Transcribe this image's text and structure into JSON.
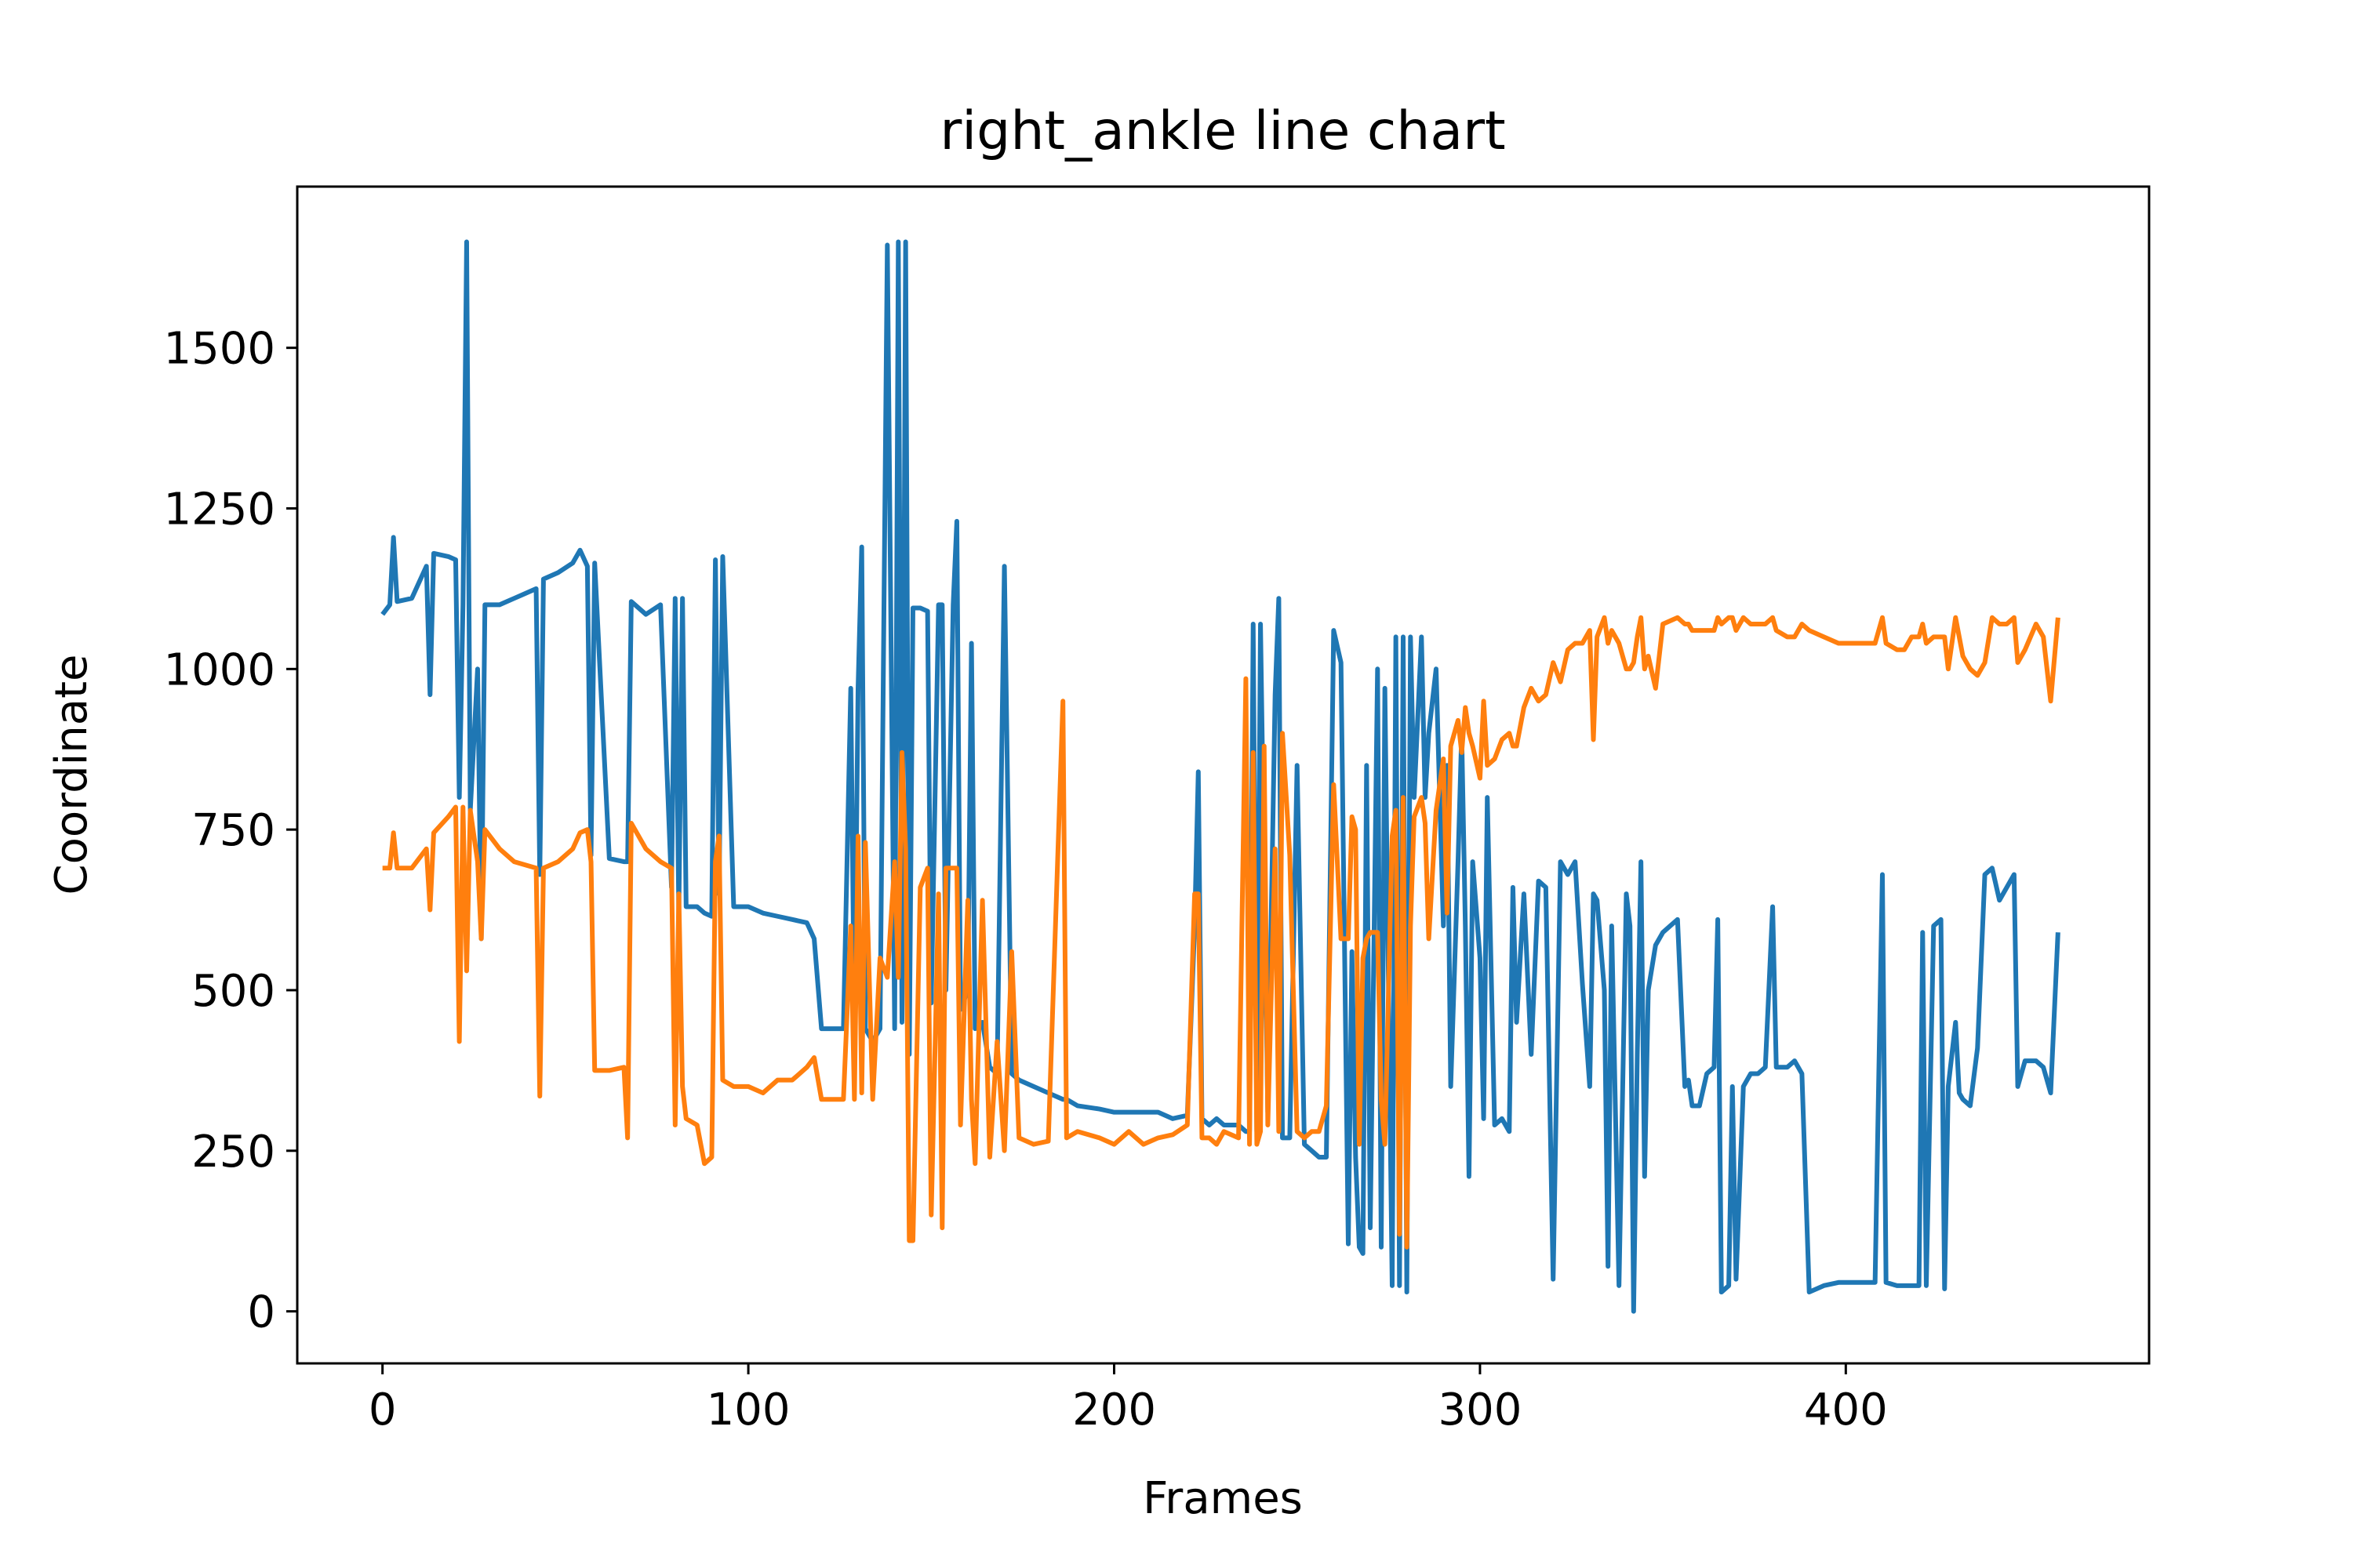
{
  "chart_data": {
    "type": "line",
    "title": "right_ankle line chart",
    "xlabel": "Frames",
    "ylabel": "Coordinate",
    "xlim": [
      -23.3,
      482.9
    ],
    "ylim": [
      -81,
      1751
    ],
    "xticks": [
      0,
      100,
      200,
      300,
      400
    ],
    "yticks": [
      0,
      250,
      500,
      750,
      1000,
      1250,
      1500
    ],
    "x": [
      0,
      2,
      3,
      4,
      8,
      12,
      13,
      14,
      18,
      20,
      21,
      22,
      23,
      24,
      26,
      27,
      28,
      32,
      36,
      42,
      43,
      44,
      48,
      52,
      54,
      56,
      57,
      58,
      62,
      66,
      67,
      68,
      72,
      76,
      79,
      80,
      81,
      82,
      83,
      86,
      88,
      90,
      91,
      92,
      93,
      96,
      100,
      104,
      108,
      112,
      116,
      118,
      120,
      124,
      126,
      128,
      129,
      130,
      131,
      132,
      134,
      136,
      138,
      140,
      141,
      142,
      143,
      144,
      145,
      147,
      149,
      150,
      152,
      153,
      154,
      156,
      157,
      158,
      160,
      161,
      162,
      164,
      166,
      168,
      170,
      172,
      174,
      178,
      182,
      186,
      187,
      190,
      196,
      200,
      204,
      208,
      212,
      216,
      220,
      222,
      223,
      224,
      226,
      228,
      230,
      234,
      236,
      237,
      238,
      239,
      240,
      241,
      242,
      244,
      245,
      246,
      248,
      250,
      252,
      254,
      256,
      258,
      260,
      262,
      264,
      265,
      266,
      267,
      268,
      269,
      270,
      272,
      273,
      274,
      276,
      277,
      278,
      279,
      280,
      281,
      282,
      284,
      285,
      286,
      288,
      290,
      291,
      292,
      294,
      295,
      296,
      297,
      298,
      300,
      301,
      302,
      304,
      306,
      308,
      309,
      310,
      312,
      314,
      316,
      318,
      320,
      322,
      324,
      326,
      328,
      330,
      331,
      332,
      334,
      335,
      336,
      338,
      340,
      341,
      342,
      343,
      344,
      345,
      346,
      348,
      350,
      352,
      354,
      356,
      357,
      358,
      360,
      362,
      364,
      365,
      366,
      368,
      369,
      370,
      372,
      374,
      376,
      378,
      380,
      381,
      384,
      386,
      388,
      390,
      394,
      398,
      402,
      406,
      408,
      410,
      411,
      414,
      416,
      418,
      420,
      421,
      422,
      424,
      426,
      427,
      428,
      430,
      431,
      432,
      434,
      436,
      438,
      440,
      442,
      444,
      446,
      447,
      449,
      452,
      454,
      456,
      458
    ],
    "series": [
      {
        "color": "#1f77b4",
        "values": [
          1085,
          1100,
          1205,
          1105,
          1110,
          1160,
          960,
          1180,
          1175,
          1170,
          800,
          1100,
          1665,
          780,
          1000,
          580,
          1100,
          1100,
          1110,
          1125,
          680,
          1140,
          1150,
          1165,
          1185,
          1160,
          710,
          1165,
          705,
          700,
          700,
          1105,
          1085,
          1100,
          660,
          1110,
          620,
          1110,
          630,
          630,
          620,
          615,
          1170,
          650,
          1175,
          630,
          630,
          620,
          615,
          610,
          605,
          580,
          440,
          440,
          440,
          970,
          440,
          970,
          1190,
          440,
          420,
          440,
          1660,
          440,
          1665,
          450,
          1665,
          400,
          1095,
          1095,
          1090,
          480,
          1100,
          1100,
          500,
          1100,
          1230,
          470,
          500,
          1040,
          440,
          450,
          380,
          370,
          1160,
          370,
          360,
          350,
          340,
          330,
          330,
          320,
          315,
          310,
          310,
          310,
          310,
          300,
          305,
          600,
          840,
          300,
          290,
          300,
          290,
          290,
          280,
          280,
          1070,
          280,
          1070,
          690,
          310,
          960,
          1110,
          270,
          270,
          850,
          260,
          250,
          240,
          240,
          1060,
          1010,
          105,
          560,
          240,
          100,
          90,
          850,
          130,
          1000,
          100,
          970,
          40,
          1050,
          40,
          1050,
          30,
          1050,
          800,
          1050,
          800,
          900,
          1000,
          600,
          850,
          350,
          700,
          900,
          600,
          210,
          700,
          550,
          300,
          800,
          290,
          300,
          280,
          660,
          450,
          650,
          400,
          670,
          660,
          50,
          700,
          680,
          700,
          510,
          350,
          650,
          640,
          500,
          70,
          600,
          40,
          650,
          600,
          0,
          400,
          700,
          210,
          500,
          570,
          590,
          600,
          610,
          350,
          360,
          320,
          320,
          370,
          380,
          610,
          30,
          40,
          350,
          50,
          350,
          370,
          370,
          380,
          630,
          380,
          380,
          390,
          370,
          30,
          40,
          45,
          45,
          45,
          45,
          680,
          45,
          40,
          40,
          40,
          40,
          590,
          40,
          600,
          610,
          35,
          350,
          450,
          340,
          330,
          320,
          410,
          680,
          690,
          640,
          660,
          680,
          350,
          390,
          390,
          380,
          340,
          590
        ]
      },
      {
        "color": "#ff7f0e",
        "values": [
          690,
          690,
          745,
          690,
          690,
          720,
          625,
          745,
          770,
          785,
          420,
          785,
          530,
          780,
          700,
          580,
          750,
          720,
          700,
          690,
          335,
          690,
          700,
          720,
          745,
          750,
          700,
          375,
          375,
          380,
          270,
          760,
          720,
          700,
          690,
          290,
          650,
          350,
          300,
          290,
          230,
          240,
          700,
          740,
          360,
          350,
          350,
          340,
          360,
          360,
          380,
          395,
          330,
          330,
          330,
          600,
          330,
          740,
          340,
          730,
          330,
          550,
          520,
          700,
          520,
          870,
          720,
          110,
          110,
          660,
          690,
          150,
          650,
          130,
          690,
          690,
          690,
          290,
          640,
          330,
          230,
          640,
          240,
          420,
          250,
          560,
          270,
          260,
          265,
          950,
          270,
          280,
          270,
          260,
          280,
          260,
          270,
          275,
          290,
          650,
          650,
          270,
          270,
          260,
          280,
          270,
          985,
          260,
          870,
          260,
          280,
          880,
          290,
          720,
          280,
          900,
          710,
          280,
          270,
          280,
          280,
          320,
          820,
          580,
          580,
          770,
          750,
          260,
          550,
          580,
          590,
          590,
          330,
          260,
          740,
          780,
          120,
          800,
          100,
          600,
          770,
          800,
          760,
          580,
          780,
          860,
          620,
          880,
          920,
          870,
          940,
          900,
          880,
          830,
          950,
          850,
          860,
          890,
          900,
          880,
          880,
          940,
          970,
          950,
          960,
          1010,
          980,
          1030,
          1040,
          1040,
          1060,
          890,
          1050,
          1080,
          1040,
          1060,
          1040,
          1000,
          1000,
          1010,
          1050,
          1080,
          1000,
          1020,
          970,
          1070,
          1075,
          1080,
          1070,
          1070,
          1060,
          1060,
          1060,
          1060,
          1080,
          1070,
          1080,
          1080,
          1060,
          1080,
          1070,
          1070,
          1070,
          1080,
          1060,
          1050,
          1050,
          1070,
          1060,
          1050,
          1040,
          1040,
          1040,
          1040,
          1080,
          1040,
          1030,
          1030,
          1050,
          1050,
          1070,
          1040,
          1050,
          1050,
          1050,
          1000,
          1080,
          1050,
          1020,
          1000,
          990,
          1010,
          1080,
          1070,
          1070,
          1080,
          1010,
          1030,
          1070,
          1050,
          950,
          1080
        ]
      }
    ]
  }
}
